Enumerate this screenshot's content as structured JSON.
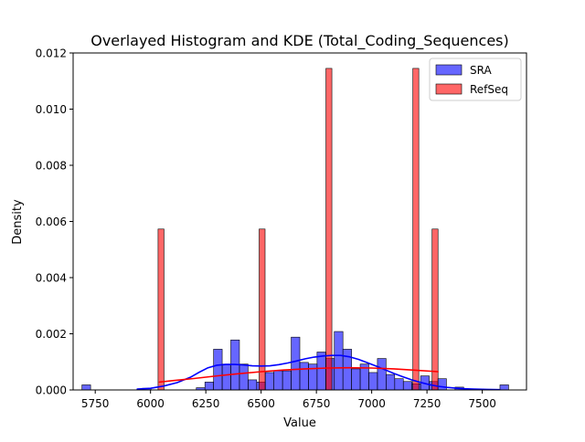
{
  "chart_data": {
    "type": "histogram_kde_overlay",
    "title": "Overlayed Histogram and KDE (Total_Coding_Sequences)",
    "xlabel": "Value",
    "ylabel": "Density",
    "xlim": [
      5650,
      7700
    ],
    "ylim": [
      0,
      0.012
    ],
    "x_ticks": [
      5750,
      6000,
      6250,
      6500,
      6750,
      7000,
      7250,
      7500
    ],
    "y_ticks": [
      0.0,
      0.002,
      0.004,
      0.006,
      0.008,
      0.01,
      0.012
    ],
    "y_tick_labels": [
      "0.000",
      "0.002",
      "0.004",
      "0.006",
      "0.008",
      "0.010",
      "0.012"
    ],
    "legend_position": "top-right",
    "series": [
      {
        "name": "SRA",
        "kind": "histogram",
        "color": "#0000ff",
        "fill_opacity": 0.6,
        "bin_width": 39,
        "bins": [
          {
            "start": 5690,
            "density": 0.00018
          },
          {
            "start": 5963,
            "density": 6e-05
          },
          {
            "start": 6207,
            "density": 8e-05
          },
          {
            "start": 6246,
            "density": 0.00028
          },
          {
            "start": 6285,
            "density": 0.00145
          },
          {
            "start": 6324,
            "density": 0.00092
          },
          {
            "start": 6363,
            "density": 0.00178
          },
          {
            "start": 6402,
            "density": 0.00092
          },
          {
            "start": 6441,
            "density": 0.00036
          },
          {
            "start": 6480,
            "density": 0.00028
          },
          {
            "start": 6519,
            "density": 0.00062
          },
          {
            "start": 6558,
            "density": 0.00068
          },
          {
            "start": 6597,
            "density": 0.00068
          },
          {
            "start": 6636,
            "density": 0.00188
          },
          {
            "start": 6675,
            "density": 0.00098
          },
          {
            "start": 6714,
            "density": 0.00092
          },
          {
            "start": 6753,
            "density": 0.00135
          },
          {
            "start": 6792,
            "density": 0.00112
          },
          {
            "start": 6831,
            "density": 0.00208
          },
          {
            "start": 6870,
            "density": 0.00145
          },
          {
            "start": 6909,
            "density": 0.00075
          },
          {
            "start": 6948,
            "density": 0.00092
          },
          {
            "start": 6987,
            "density": 0.00062
          },
          {
            "start": 7026,
            "density": 0.00112
          },
          {
            "start": 7065,
            "density": 0.00055
          },
          {
            "start": 7104,
            "density": 0.0004
          },
          {
            "start": 7143,
            "density": 0.0003
          },
          {
            "start": 7182,
            "density": 0.00022
          },
          {
            "start": 7221,
            "density": 0.0005
          },
          {
            "start": 7260,
            "density": 0.0003
          },
          {
            "start": 7299,
            "density": 0.0004
          },
          {
            "start": 7377,
            "density": 0.0001
          },
          {
            "start": 7580,
            "density": 0.00018
          }
        ],
        "kde": [
          [
            5940,
            3e-05
          ],
          [
            6000,
            6e-05
          ],
          [
            6060,
            0.00014
          ],
          [
            6120,
            0.00026
          ],
          [
            6180,
            0.00045
          ],
          [
            6220,
            0.00063
          ],
          [
            6260,
            0.00079
          ],
          [
            6300,
            0.00088
          ],
          [
            6340,
            0.00091
          ],
          [
            6380,
            0.00091
          ],
          [
            6420,
            0.00089
          ],
          [
            6460,
            0.00086
          ],
          [
            6500,
            0.00085
          ],
          [
            6540,
            0.00086
          ],
          [
            6580,
            0.0009
          ],
          [
            6620,
            0.00096
          ],
          [
            6660,
            0.00103
          ],
          [
            6700,
            0.00111
          ],
          [
            6740,
            0.00117
          ],
          [
            6780,
            0.00121
          ],
          [
            6820,
            0.00123
          ],
          [
            6860,
            0.00123
          ],
          [
            6900,
            0.00118
          ],
          [
            6940,
            0.00109
          ],
          [
            6980,
            0.00097
          ],
          [
            7020,
            0.00085
          ],
          [
            7060,
            0.00072
          ],
          [
            7100,
            0.00059
          ],
          [
            7140,
            0.00047
          ],
          [
            7180,
            0.00036
          ],
          [
            7220,
            0.00027
          ],
          [
            7260,
            0.00019
          ],
          [
            7300,
            0.00013
          ],
          [
            7340,
            9e-05
          ],
          [
            7400,
            5e-05
          ],
          [
            7460,
            3e-05
          ],
          [
            7520,
            2e-05
          ],
          [
            7580,
            1e-05
          ]
        ]
      },
      {
        "name": "RefSeq",
        "kind": "histogram",
        "color": "#ff0000",
        "fill_opacity": 0.6,
        "bin_width": 27,
        "bins": [
          {
            "start": 6034,
            "density": 0.00573
          },
          {
            "start": 6491,
            "density": 0.00573
          },
          {
            "start": 6793,
            "density": 0.01145
          },
          {
            "start": 7186,
            "density": 0.01145
          },
          {
            "start": 7273,
            "density": 0.00573
          }
        ],
        "kde": [
          [
            6040,
            0.00028
          ],
          [
            6100,
            0.00033
          ],
          [
            6200,
            0.00041
          ],
          [
            6300,
            0.0005
          ],
          [
            6400,
            0.00058
          ],
          [
            6500,
            0.00065
          ],
          [
            6600,
            0.00071
          ],
          [
            6700,
            0.00075
          ],
          [
            6800,
            0.00078
          ],
          [
            6900,
            0.00079
          ],
          [
            7000,
            0.00078
          ],
          [
            7100,
            0.00075
          ],
          [
            7200,
            0.0007
          ],
          [
            7300,
            0.00065
          ]
        ]
      }
    ]
  }
}
